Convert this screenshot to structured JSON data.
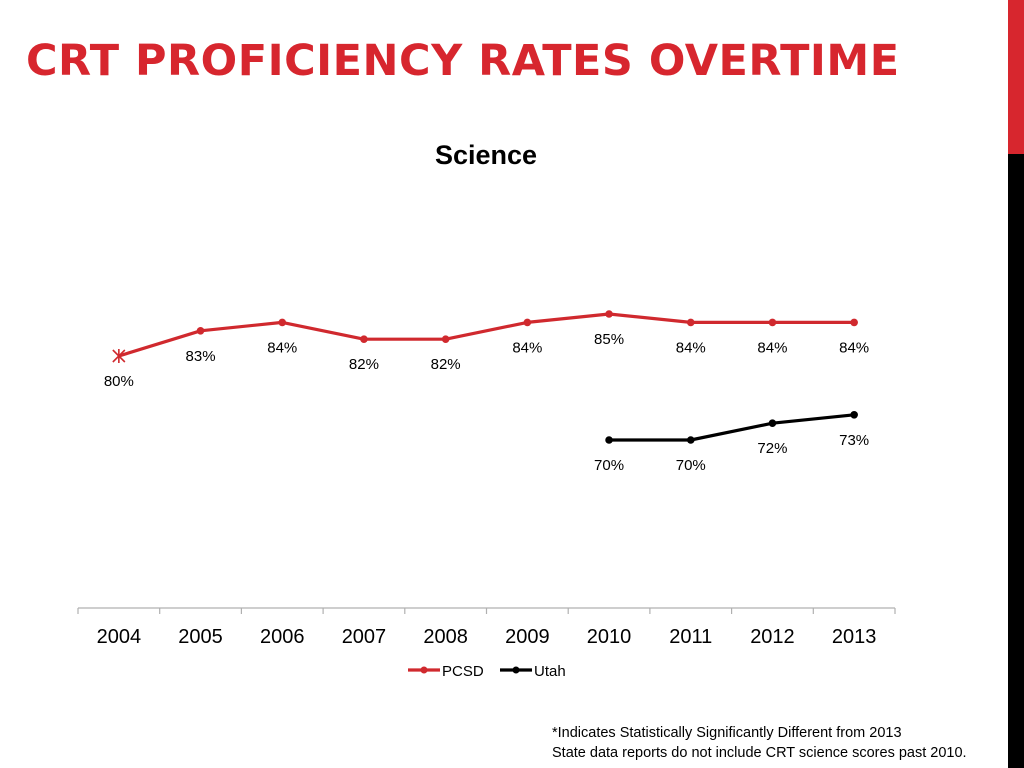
{
  "slide": {
    "title": "CRT PROFICIENCY RATES OVERTIME",
    "accent_color": "#d7262e"
  },
  "footnotes": [
    "*Indicates Statistically Significantly Different from 2013",
    "State data reports do not include CRT science scores past 2010."
  ],
  "chart_data": {
    "type": "line",
    "title": "Science",
    "xlabel": "",
    "ylabel": "",
    "ylim": [
      0,
      100
    ],
    "grid": false,
    "legend_placement": "bottom",
    "categories": [
      "2004",
      "2005",
      "2006",
      "2007",
      "2008",
      "2009",
      "2010",
      "2011",
      "2012",
      "2013"
    ],
    "series": [
      {
        "name": "PCSD",
        "color": "#d0292e",
        "values": [
          80,
          83,
          84,
          82,
          82,
          84,
          85,
          84,
          84,
          84
        ],
        "labels": [
          "80%",
          "83%",
          "84%",
          "82%",
          "82%",
          "84%",
          "85%",
          "84%",
          "84%",
          "84%"
        ],
        "significant": [
          true,
          false,
          false,
          false,
          false,
          false,
          false,
          false,
          false,
          false
        ]
      },
      {
        "name": "Utah",
        "color": "#000000",
        "values": [
          null,
          null,
          null,
          null,
          null,
          null,
          70,
          70,
          72,
          73
        ],
        "labels": [
          null,
          null,
          null,
          null,
          null,
          null,
          "70%",
          "70%",
          "72%",
          "73%"
        ],
        "significant": [
          false,
          false,
          false,
          false,
          false,
          false,
          false,
          false,
          false,
          false
        ]
      }
    ]
  }
}
